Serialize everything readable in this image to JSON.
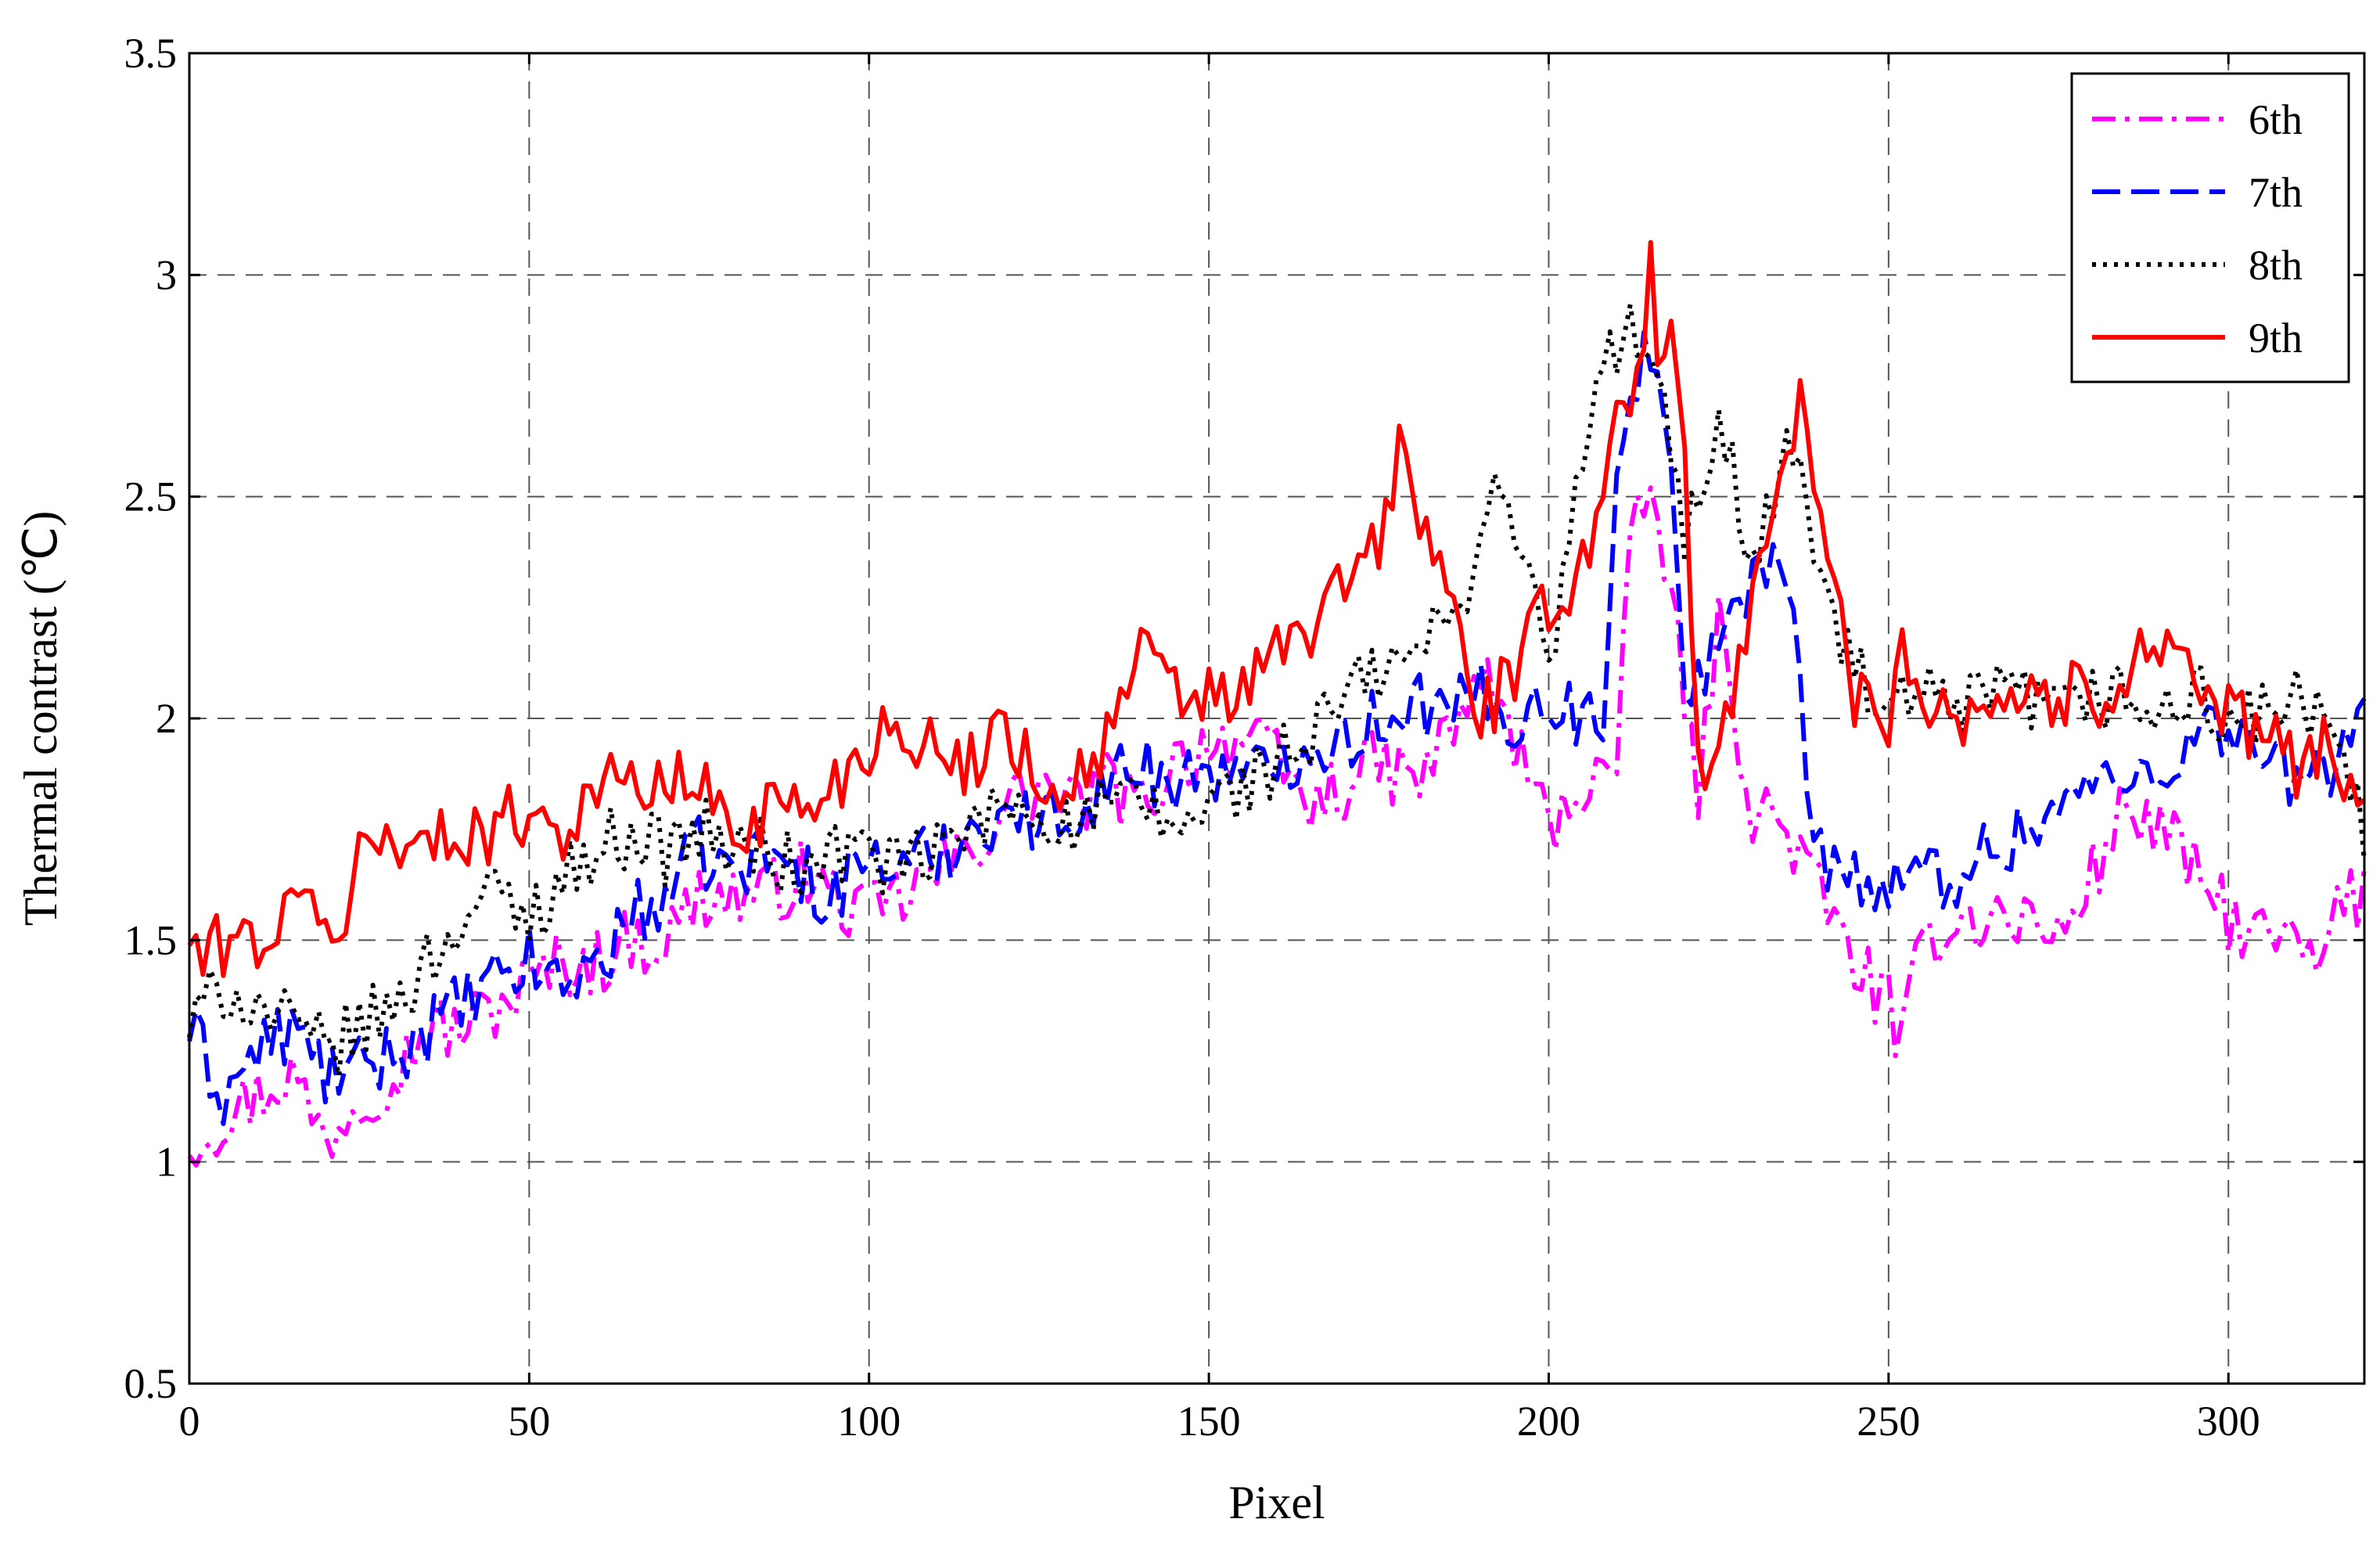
{
  "chart_data": {
    "type": "line",
    "title": "",
    "xlabel": "Pixel",
    "ylabel": "Thermal contrast (℃)",
    "xlim": [
      0,
      320
    ],
    "ylim": [
      0.5,
      3.5
    ],
    "xticks": [
      "0",
      "50",
      "100",
      "150",
      "200",
      "250",
      "300"
    ],
    "yticks": [
      "0.5",
      "1",
      "1.5",
      "2",
      "2.5",
      "3",
      "3.5"
    ],
    "grid": true,
    "legend_position": "top-right",
    "series": [
      {
        "name": "6th",
        "color": "#ff00ff",
        "dash": "dashdot",
        "x": [
          0,
          5,
          10,
          15,
          20,
          25,
          30,
          35,
          40,
          45,
          50,
          55,
          60,
          65,
          70,
          75,
          80,
          85,
          90,
          95,
          100,
          105,
          110,
          115,
          120,
          125,
          130,
          135,
          140,
          145,
          150,
          155,
          160,
          165,
          170,
          175,
          180,
          185,
          190,
          195,
          200,
          205,
          210,
          212,
          214,
          216,
          218,
          220,
          222,
          225,
          230,
          235,
          240,
          245,
          250,
          252,
          255,
          260,
          265,
          270,
          275,
          280,
          285,
          290,
          295,
          300,
          305,
          310,
          313,
          315,
          320
        ],
        "y": [
          1.05,
          1.1,
          1.15,
          1.2,
          1.05,
          1.15,
          1.2,
          1.3,
          1.3,
          1.35,
          1.4,
          1.45,
          1.45,
          1.5,
          1.5,
          1.6,
          1.6,
          1.6,
          1.65,
          1.6,
          1.55,
          1.6,
          1.65,
          1.7,
          1.8,
          1.85,
          1.8,
          1.85,
          1.8,
          1.9,
          1.95,
          1.95,
          1.9,
          1.8,
          1.85,
          1.9,
          1.85,
          1.95,
          2.1,
          1.95,
          1.75,
          1.85,
          1.9,
          2.35,
          2.5,
          2.45,
          2.3,
          2.0,
          1.85,
          2.2,
          1.8,
          1.75,
          1.6,
          1.45,
          1.35,
          1.25,
          1.5,
          1.55,
          1.55,
          1.55,
          1.5,
          1.65,
          1.8,
          1.75,
          1.65,
          1.55,
          1.5,
          1.5,
          1.4,
          1.55,
          1.6
        ]
      },
      {
        "name": "7th",
        "color": "#0000ff",
        "dash": "dash",
        "x": [
          0,
          5,
          10,
          15,
          20,
          25,
          30,
          35,
          40,
          45,
          50,
          55,
          60,
          65,
          70,
          75,
          80,
          85,
          90,
          95,
          100,
          105,
          110,
          115,
          120,
          125,
          130,
          135,
          140,
          145,
          150,
          155,
          160,
          165,
          170,
          175,
          180,
          185,
          190,
          195,
          200,
          205,
          208,
          210,
          212,
          214,
          216,
          218,
          220,
          222,
          225,
          230,
          235,
          238,
          240,
          245,
          250,
          255,
          260,
          265,
          270,
          275,
          280,
          285,
          290,
          295,
          300,
          305,
          310,
          315,
          320
        ],
        "y": [
          1.3,
          1.15,
          1.25,
          1.3,
          1.2,
          1.2,
          1.25,
          1.3,
          1.35,
          1.4,
          1.45,
          1.4,
          1.45,
          1.55,
          1.6,
          1.7,
          1.65,
          1.7,
          1.65,
          1.6,
          1.7,
          1.65,
          1.7,
          1.75,
          1.8,
          1.75,
          1.8,
          1.85,
          1.9,
          1.85,
          1.9,
          1.85,
          1.9,
          1.95,
          1.95,
          2.0,
          2.05,
          2.0,
          2.05,
          2.0,
          2.05,
          2.0,
          2.0,
          2.6,
          2.75,
          2.8,
          2.85,
          2.5,
          2.0,
          2.1,
          2.2,
          2.3,
          2.35,
          1.9,
          1.7,
          1.65,
          1.6,
          1.65,
          1.65,
          1.7,
          1.75,
          1.8,
          1.85,
          1.85,
          1.9,
          1.95,
          2.0,
          1.9,
          1.85,
          1.9,
          2.05
        ]
      },
      {
        "name": "8th",
        "color": "#000000",
        "dash": "dot",
        "x": [
          0,
          5,
          10,
          15,
          20,
          25,
          30,
          35,
          40,
          45,
          50,
          55,
          60,
          65,
          70,
          75,
          80,
          85,
          90,
          95,
          100,
          105,
          110,
          115,
          120,
          125,
          130,
          135,
          140,
          145,
          150,
          155,
          160,
          165,
          170,
          175,
          180,
          185,
          190,
          193,
          195,
          200,
          205,
          210,
          212,
          214,
          216,
          218,
          220,
          222,
          225,
          230,
          235,
          238,
          240,
          245,
          250,
          255,
          260,
          265,
          270,
          275,
          280,
          285,
          290,
          295,
          300,
          305,
          310,
          315,
          320
        ],
        "y": [
          1.3,
          1.4,
          1.35,
          1.3,
          1.25,
          1.3,
          1.35,
          1.45,
          1.55,
          1.6,
          1.55,
          1.65,
          1.7,
          1.75,
          1.7,
          1.75,
          1.7,
          1.7,
          1.65,
          1.7,
          1.7,
          1.65,
          1.7,
          1.75,
          1.8,
          1.8,
          1.75,
          1.8,
          1.8,
          1.75,
          1.8,
          1.85,
          1.9,
          1.95,
          2.05,
          2.1,
          2.15,
          2.2,
          2.4,
          2.55,
          2.45,
          2.1,
          2.6,
          2.85,
          2.9,
          2.8,
          2.75,
          2.6,
          2.4,
          2.5,
          2.7,
          2.35,
          2.6,
          2.5,
          2.3,
          2.1,
          2.0,
          2.05,
          2.0,
          2.05,
          2.05,
          2.0,
          2.05,
          2.05,
          2.0,
          2.05,
          2.0,
          2.0,
          2.05,
          1.95,
          1.75
        ]
      },
      {
        "name": "9th",
        "color": "#ff0000",
        "dash": "solid",
        "x": [
          0,
          2,
          5,
          10,
          15,
          20,
          22,
          25,
          30,
          35,
          40,
          45,
          50,
          55,
          60,
          65,
          70,
          75,
          80,
          85,
          90,
          95,
          100,
          105,
          110,
          115,
          120,
          125,
          130,
          135,
          140,
          145,
          150,
          155,
          160,
          165,
          170,
          175,
          178,
          180,
          185,
          190,
          195,
          200,
          205,
          210,
          212,
          214,
          215,
          216,
          218,
          220,
          222,
          225,
          230,
          235,
          237,
          240,
          245,
          250,
          252,
          255,
          260,
          265,
          270,
          275,
          280,
          285,
          290,
          295,
          300,
          305,
          310,
          315,
          320
        ],
        "y": [
          1.5,
          1.45,
          1.5,
          1.5,
          1.55,
          1.6,
          1.45,
          1.7,
          1.75,
          1.7,
          1.75,
          1.75,
          1.8,
          1.75,
          1.85,
          1.85,
          1.85,
          1.85,
          1.75,
          1.8,
          1.8,
          1.85,
          1.95,
          2.0,
          1.9,
          1.9,
          2.0,
          1.85,
          1.85,
          1.95,
          2.15,
          2.05,
          2.05,
          2.05,
          2.15,
          2.2,
          2.3,
          2.4,
          2.6,
          2.5,
          2.3,
          2.0,
          2.1,
          2.25,
          2.35,
          2.65,
          2.75,
          2.85,
          3.12,
          2.85,
          2.85,
          2.6,
          1.85,
          1.9,
          2.3,
          2.6,
          2.7,
          2.45,
          2.05,
          2.0,
          2.2,
          2.05,
          2.0,
          2.05,
          2.05,
          2.05,
          2.05,
          2.1,
          2.2,
          2.1,
          2.0,
          1.95,
          1.9,
          1.95,
          1.8
        ]
      }
    ]
  }
}
